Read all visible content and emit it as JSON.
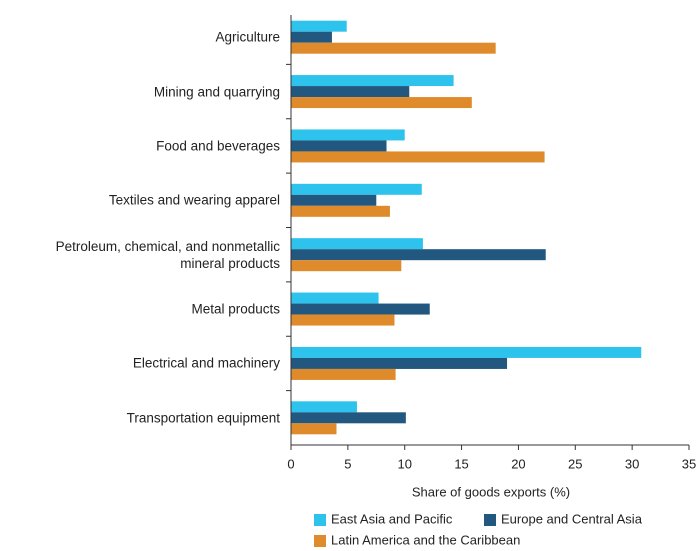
{
  "chart_data": {
    "type": "barh",
    "categories": [
      "Agriculture",
      "Mining and quarrying",
      "Food and beverages",
      "Textiles and wearing apparel",
      "Petroleum, chemical, and nonmetallic mineral products",
      "Metal products",
      "Electrical and machinery",
      "Transportation equipment"
    ],
    "series": [
      {
        "name": "East Asia and Pacific",
        "color": "#2ec3ec",
        "values": [
          4.9,
          14.3,
          10.0,
          11.5,
          11.6,
          7.7,
          30.8,
          5.8
        ]
      },
      {
        "name": "Europe and Central Asia",
        "color": "#22577f",
        "values": [
          3.6,
          10.4,
          8.4,
          7.5,
          22.4,
          12.2,
          19.0,
          10.1
        ]
      },
      {
        "name": "Latin America and the Caribbean",
        "color": "#e08b2b",
        "values": [
          18.0,
          15.9,
          22.3,
          8.7,
          9.7,
          9.1,
          9.2,
          4.0
        ]
      }
    ],
    "xlabel": "Share of goods exports (%)",
    "xlim": [
      0,
      35
    ],
    "xticks": [
      0,
      5,
      10,
      15,
      20,
      25,
      30,
      35
    ]
  }
}
